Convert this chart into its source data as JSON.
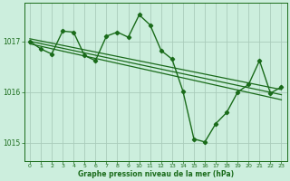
{
  "background_color": "#cceedd",
  "grid_color": "#aaccbb",
  "line_color": "#1a6b1a",
  "marker_color": "#1a6b1a",
  "xlabel": "Graphe pression niveau de la mer (hPa)",
  "xlim": [
    -0.5,
    23.5
  ],
  "ylim": [
    1014.65,
    1017.75
  ],
  "yticks": [
    1015,
    1016,
    1017
  ],
  "xticks": [
    0,
    1,
    2,
    3,
    4,
    5,
    6,
    7,
    8,
    9,
    10,
    11,
    12,
    13,
    14,
    15,
    16,
    17,
    18,
    19,
    20,
    21,
    22,
    23
  ],
  "series": [
    {
      "x": [
        0,
        23
      ],
      "y": [
        1017.05,
        1016.05
      ],
      "with_markers": false,
      "linewidth": 0.9
    },
    {
      "x": [
        0,
        23
      ],
      "y": [
        1017.0,
        1015.95
      ],
      "with_markers": false,
      "linewidth": 0.9
    },
    {
      "x": [
        0,
        23
      ],
      "y": [
        1016.95,
        1015.85
      ],
      "with_markers": false,
      "linewidth": 0.9
    },
    {
      "x": [
        0,
        1,
        2,
        3,
        4,
        5,
        6,
        7,
        8,
        9,
        10,
        11,
        12,
        13,
        14,
        15,
        16,
        17,
        18,
        19,
        20,
        21,
        22,
        23
      ],
      "y": [
        1017.0,
        1016.85,
        1016.75,
        1017.2,
        1017.18,
        1016.72,
        1016.62,
        1017.1,
        1017.18,
        1017.08,
        1017.52,
        1017.32,
        1016.82,
        1016.65,
        1016.02,
        1015.08,
        1015.02,
        1015.38,
        1015.6,
        1016.0,
        1016.15,
        1016.62,
        1015.98,
        1016.1
      ],
      "with_markers": true,
      "linewidth": 1.0
    }
  ]
}
